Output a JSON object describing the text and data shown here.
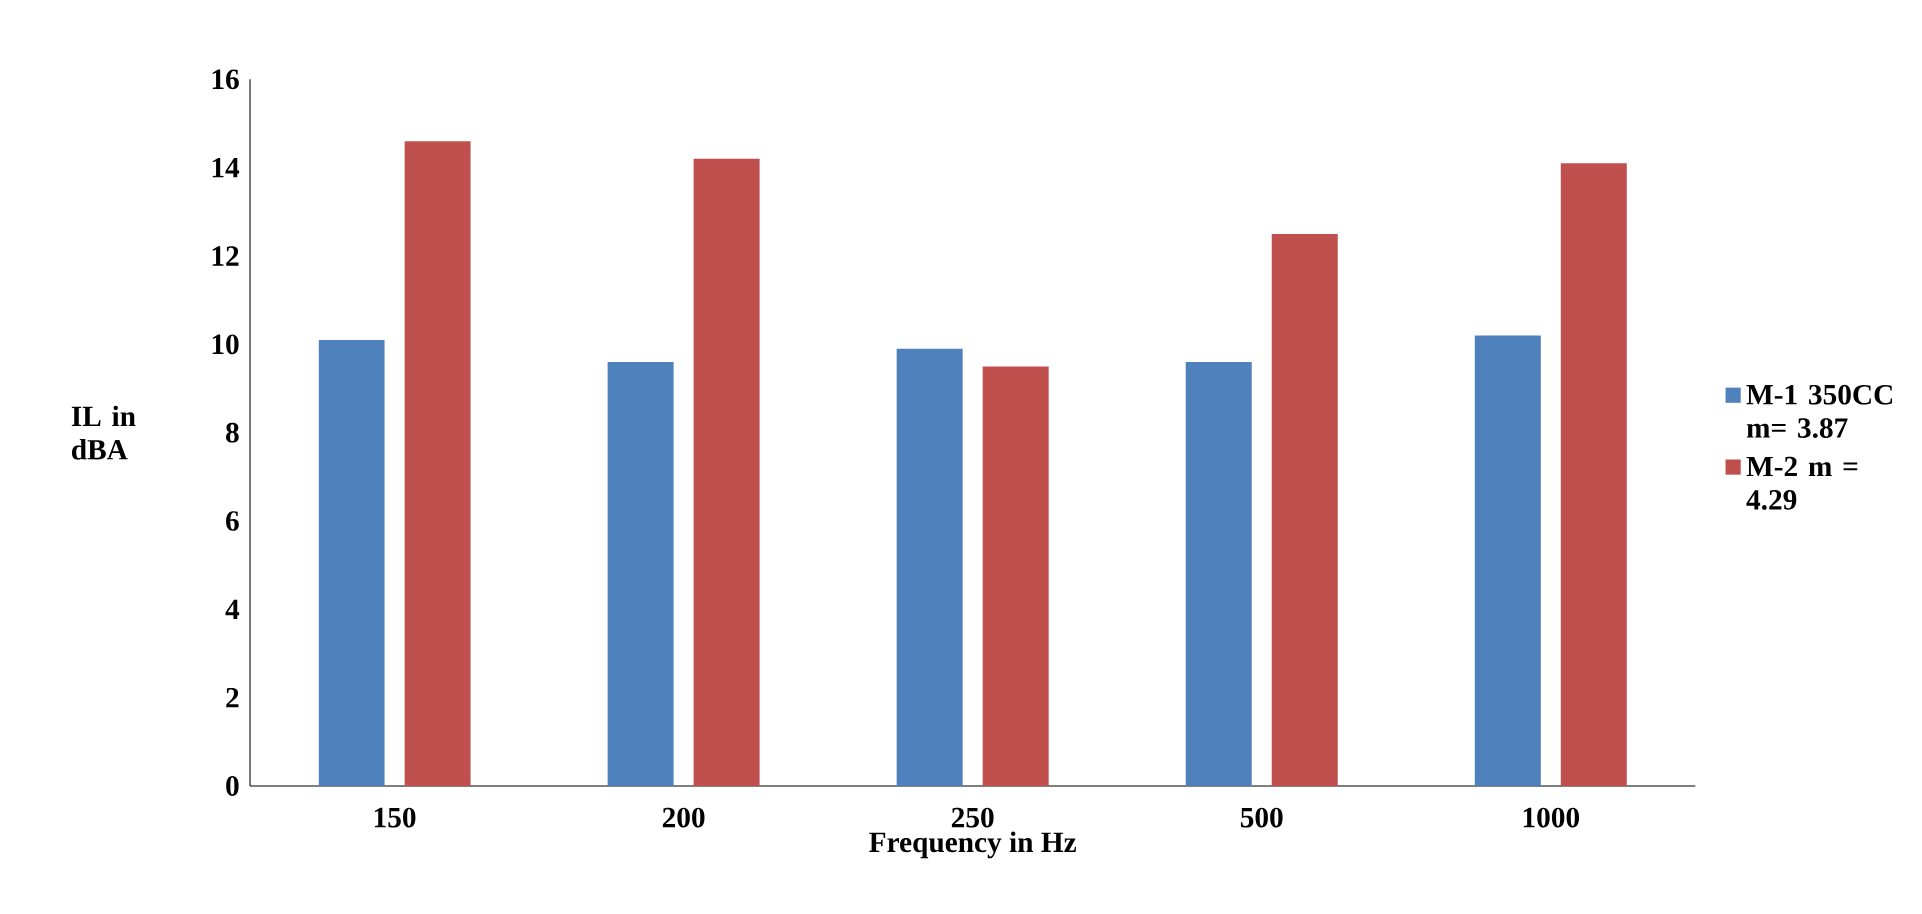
{
  "chart_data": {
    "type": "bar",
    "xlabel": "Frequency in Hz",
    "ylabel": "IL in dBA",
    "categories": [
      "150",
      "200",
      "250",
      "500",
      "1000"
    ],
    "series": [
      {
        "name": "M-1 350CC m= 3.87",
        "color": "#4f81bd",
        "values": [
          10.1,
          9.6,
          9.9,
          9.6,
          10.2
        ]
      },
      {
        "name": "M-2 m = 4.29",
        "color": "#c0504d",
        "values": [
          14.6,
          14.2,
          9.5,
          12.5,
          14.1
        ]
      }
    ],
    "ylim": [
      0,
      16
    ],
    "yticks": [
      0,
      2,
      4,
      6,
      8,
      10,
      12,
      14,
      16
    ],
    "legend": "right",
    "grid": false
  }
}
